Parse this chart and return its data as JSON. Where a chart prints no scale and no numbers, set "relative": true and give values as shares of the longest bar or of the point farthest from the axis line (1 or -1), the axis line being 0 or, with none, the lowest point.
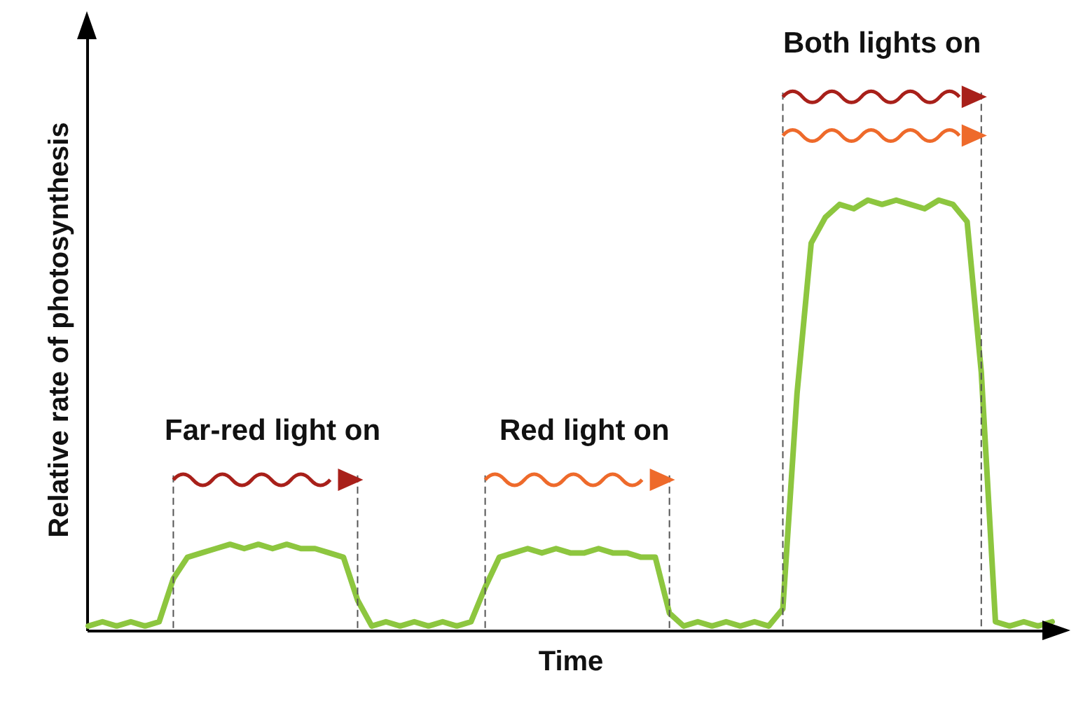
{
  "chart_data": {
    "type": "line",
    "relative": true,
    "xlabel": "Time",
    "ylabel": "Relative rate of photosynthesis",
    "annotations": [
      "Far-red light on",
      "Red light on",
      "Both lights on"
    ],
    "categories": [
      null,
      null,
      null,
      null,
      null,
      null,
      null,
      null,
      null,
      null,
      null,
      null,
      null,
      null,
      null,
      null,
      null,
      null,
      null,
      null,
      null,
      null,
      null,
      null,
      null,
      null,
      null,
      null,
      null,
      null,
      null,
      null,
      null,
      null,
      null,
      null,
      null,
      null,
      null,
      null,
      null,
      null,
      null,
      null,
      null,
      null,
      null,
      null,
      null,
      null,
      null,
      null,
      null,
      null,
      null,
      null,
      null,
      null,
      null,
      null,
      null,
      null,
      null,
      null,
      null,
      null,
      null,
      null,
      null
    ],
    "series": [
      {
        "color": "#8dc63f",
        "values": [
          0.01,
          0.02,
          0.01,
          0.02,
          0.01,
          0.02,
          0.12,
          0.17,
          0.18,
          0.19,
          0.2,
          0.19,
          0.2,
          0.19,
          0.2,
          0.19,
          0.19,
          0.18,
          0.17,
          0.07,
          0.01,
          0.02,
          0.01,
          0.02,
          0.01,
          0.02,
          0.01,
          0.02,
          0.1,
          0.17,
          0.18,
          0.19,
          0.18,
          0.19,
          0.18,
          0.18,
          0.19,
          0.18,
          0.18,
          0.17,
          0.17,
          0.04,
          0.01,
          0.02,
          0.01,
          0.02,
          0.01,
          0.02,
          0.01,
          0.05,
          0.55,
          0.9,
          0.96,
          0.99,
          0.98,
          1,
          0.99,
          1,
          0.99,
          0.98,
          1,
          0.99,
          0.95,
          0.6,
          0.02,
          0.01,
          0.02,
          0.01,
          0.02
        ]
      }
    ]
  }
}
